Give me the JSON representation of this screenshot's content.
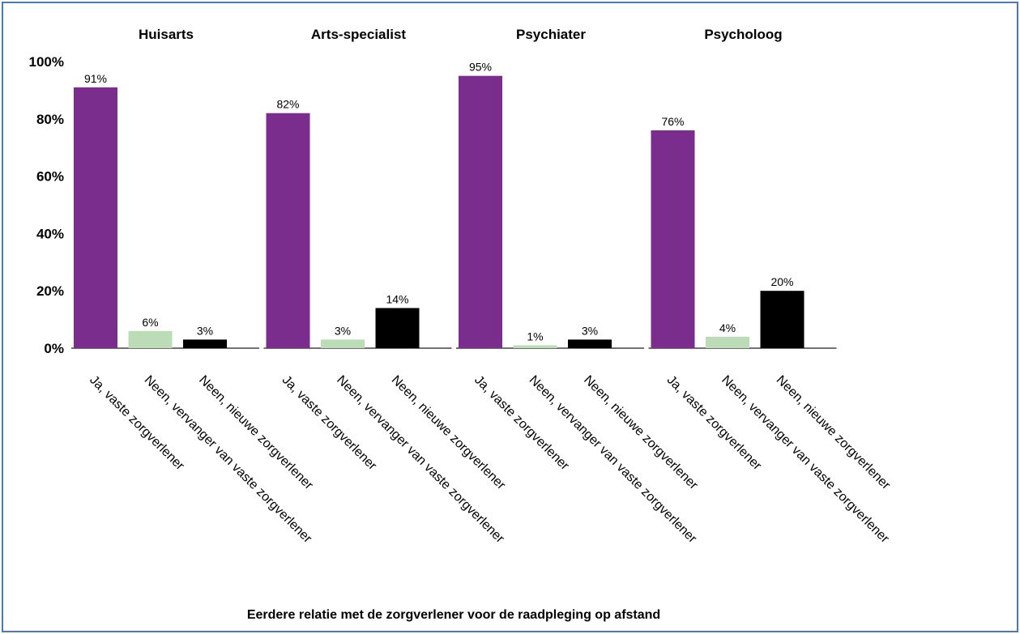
{
  "chart_data": {
    "type": "bar",
    "xlabel": "Eerdere relatie met de zorgverlener voor de raadpleging op afstand",
    "ylim": [
      0,
      100
    ],
    "yticks": [
      "0%",
      "20%",
      "40%",
      "60%",
      "80%",
      "100%"
    ],
    "categories": [
      "Ja, vaste zorgverlener",
      "Neen, vervanger van vaste zorgverlener",
      "Neen, nieuwe zorgverlener"
    ],
    "colors": [
      "#7b2d8e",
      "#bcdcb8",
      "#000000"
    ],
    "panels": [
      {
        "title": "Huisarts",
        "values": [
          91,
          6,
          3
        ],
        "labels": [
          "91%",
          "6%",
          "3%"
        ]
      },
      {
        "title": "Arts-specialist",
        "values": [
          82,
          3,
          14
        ],
        "labels": [
          "82%",
          "3%",
          "14%"
        ]
      },
      {
        "title": "Psychiater",
        "values": [
          95,
          1,
          3
        ],
        "labels": [
          "95%",
          "1%",
          "3%"
        ]
      },
      {
        "title": "Psycholoog",
        "values": [
          76,
          4,
          20
        ],
        "labels": [
          "76%",
          "4%",
          "20%"
        ]
      }
    ],
    "grid": false,
    "legend": "none"
  }
}
